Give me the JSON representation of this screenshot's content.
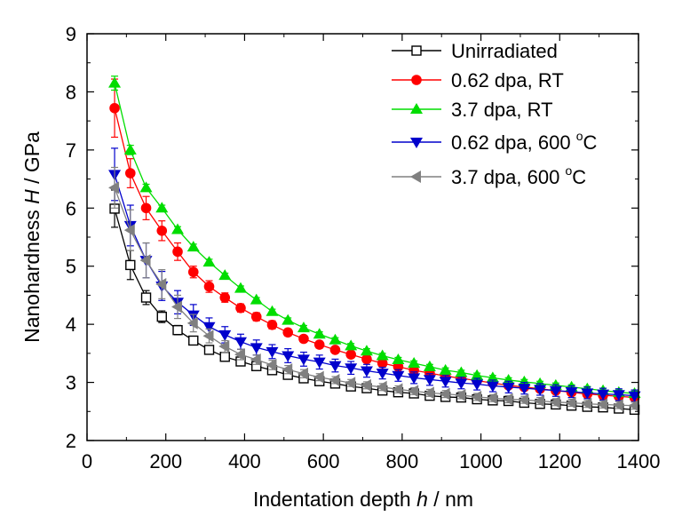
{
  "chart_data": {
    "type": "scatter",
    "title": "",
    "xlabel": "Indentation depth h / nm",
    "xlabel_parts": [
      "Indentation depth ",
      "h",
      " / nm"
    ],
    "ylabel": "Nanohardness H / GPa",
    "ylabel_parts": [
      "Nanohardness ",
      "H",
      " / GPa"
    ],
    "xlim": [
      0,
      1400
    ],
    "ylim": [
      2,
      9
    ],
    "xticks": [
      "0",
      "200",
      "400",
      "600",
      "800",
      "1000",
      "1200",
      "1400"
    ],
    "yticks": [
      "2",
      "3",
      "4",
      "5",
      "6",
      "7",
      "8",
      "9"
    ],
    "grid": false,
    "legend_position": "top-right",
    "x": [
      70,
      110,
      150,
      190,
      230,
      270,
      310,
      350,
      390,
      430,
      470,
      510,
      550,
      590,
      630,
      670,
      710,
      750,
      790,
      830,
      870,
      910,
      950,
      990,
      1030,
      1070,
      1110,
      1150,
      1190,
      1230,
      1270,
      1310,
      1350,
      1390
    ],
    "series": [
      {
        "name": "Unirradiated",
        "color": "#000000",
        "marker": "open-square",
        "values": [
          5.99,
          5.02,
          4.46,
          4.13,
          3.9,
          3.72,
          3.56,
          3.44,
          3.36,
          3.28,
          3.21,
          3.13,
          3.07,
          3.02,
          2.98,
          2.93,
          2.9,
          2.86,
          2.83,
          2.81,
          2.77,
          2.75,
          2.74,
          2.71,
          2.69,
          2.68,
          2.65,
          2.63,
          2.62,
          2.6,
          2.58,
          2.57,
          2.55,
          2.53
        ],
        "errors": [
          0.32,
          0.25,
          0.12,
          0.1,
          0.08,
          0.07,
          0.07,
          0.06,
          0.05,
          0.05,
          0.05,
          0.05,
          0.05,
          0.05,
          0.04,
          0.04,
          0.04,
          0.04,
          0.04,
          0.04,
          0.04,
          0.04,
          0.04,
          0.04,
          0.04,
          0.04,
          0.04,
          0.04,
          0.04,
          0.04,
          0.04,
          0.04,
          0.04,
          0.04
        ]
      },
      {
        "name": "0.62 dpa, RT",
        "color": "#ff0000",
        "marker": "filled-circle",
        "values": [
          7.72,
          6.6,
          6.0,
          5.61,
          5.25,
          4.9,
          4.65,
          4.46,
          4.28,
          4.13,
          3.99,
          3.86,
          3.75,
          3.65,
          3.56,
          3.48,
          3.4,
          3.33,
          3.27,
          3.21,
          3.16,
          3.11,
          3.07,
          3.03,
          2.99,
          2.95,
          2.92,
          2.89,
          2.86,
          2.83,
          2.8,
          2.78,
          2.76,
          2.74
        ],
        "errors": [
          0.5,
          0.25,
          0.2,
          0.17,
          0.15,
          0.1,
          0.1,
          0.08,
          0.07,
          0.07,
          0.07,
          0.06,
          0.06,
          0.06,
          0.05,
          0.05,
          0.05,
          0.05,
          0.05,
          0.05,
          0.05,
          0.05,
          0.05,
          0.05,
          0.05,
          0.05,
          0.05,
          0.05,
          0.05,
          0.05,
          0.05,
          0.05,
          0.05,
          0.05
        ]
      },
      {
        "name": "3.7 dpa, RT",
        "color": "#00dd00",
        "marker": "filled-triangle-up",
        "values": [
          8.15,
          7.0,
          6.35,
          6.0,
          5.63,
          5.33,
          5.07,
          4.84,
          4.62,
          4.42,
          4.22,
          4.07,
          3.94,
          3.83,
          3.73,
          3.63,
          3.54,
          3.46,
          3.39,
          3.33,
          3.27,
          3.21,
          3.17,
          3.12,
          3.08,
          3.04,
          3.01,
          2.98,
          2.95,
          2.92,
          2.89,
          2.86,
          2.83,
          2.81
        ],
        "errors": [
          0.12,
          0.08,
          0.06,
          0.05,
          0.05,
          0.05,
          0.05,
          0.04,
          0.04,
          0.04,
          0.04,
          0.04,
          0.04,
          0.04,
          0.04,
          0.04,
          0.04,
          0.04,
          0.04,
          0.04,
          0.04,
          0.04,
          0.04,
          0.04,
          0.04,
          0.04,
          0.04,
          0.04,
          0.04,
          0.04,
          0.04,
          0.04,
          0.04,
          0.04
        ]
      },
      {
        "name": "0.62 dpa, 600 °C",
        "name_parts": [
          "0.62 dpa, 600 ",
          "o",
          "C"
        ],
        "color": "#0000cc",
        "marker": "filled-triangle-down",
        "values": [
          6.58,
          5.7,
          5.1,
          4.66,
          4.38,
          4.16,
          3.96,
          3.82,
          3.7,
          3.6,
          3.53,
          3.46,
          3.4,
          3.35,
          3.29,
          3.25,
          3.2,
          3.16,
          3.12,
          3.08,
          3.05,
          3.02,
          2.99,
          2.97,
          2.94,
          2.92,
          2.9,
          2.88,
          2.86,
          2.84,
          2.82,
          2.8,
          2.79,
          2.77
        ],
        "errors": [
          0.45,
          0.35,
          0.3,
          0.25,
          0.2,
          0.18,
          0.15,
          0.14,
          0.13,
          0.13,
          0.12,
          0.12,
          0.12,
          0.12,
          0.11,
          0.11,
          0.11,
          0.1,
          0.1,
          0.1,
          0.1,
          0.1,
          0.1,
          0.1,
          0.1,
          0.1,
          0.1,
          0.1,
          0.1,
          0.1,
          0.1,
          0.1,
          0.1,
          0.1
        ]
      },
      {
        "name": "3.7 dpa, 600 °C",
        "name_parts": [
          "3.7 dpa, 600 ",
          "o",
          "C"
        ],
        "color": "#808080",
        "marker": "filled-triangle-left",
        "values": [
          6.35,
          5.62,
          5.1,
          4.69,
          4.3,
          4.02,
          3.8,
          3.62,
          3.48,
          3.39,
          3.3,
          3.22,
          3.15,
          3.09,
          3.04,
          2.99,
          2.95,
          2.92,
          2.88,
          2.85,
          2.82,
          2.8,
          2.78,
          2.75,
          2.73,
          2.71,
          2.7,
          2.68,
          2.66,
          2.65,
          2.63,
          2.62,
          2.61,
          2.6
        ],
        "errors": [
          0.35,
          0.35,
          0.3,
          0.25,
          0.2,
          0.15,
          0.12,
          0.1,
          0.09,
          0.08,
          0.08,
          0.07,
          0.07,
          0.06,
          0.06,
          0.06,
          0.06,
          0.06,
          0.06,
          0.06,
          0.06,
          0.06,
          0.06,
          0.06,
          0.06,
          0.06,
          0.06,
          0.06,
          0.06,
          0.06,
          0.06,
          0.06,
          0.06,
          0.06
        ]
      }
    ]
  }
}
